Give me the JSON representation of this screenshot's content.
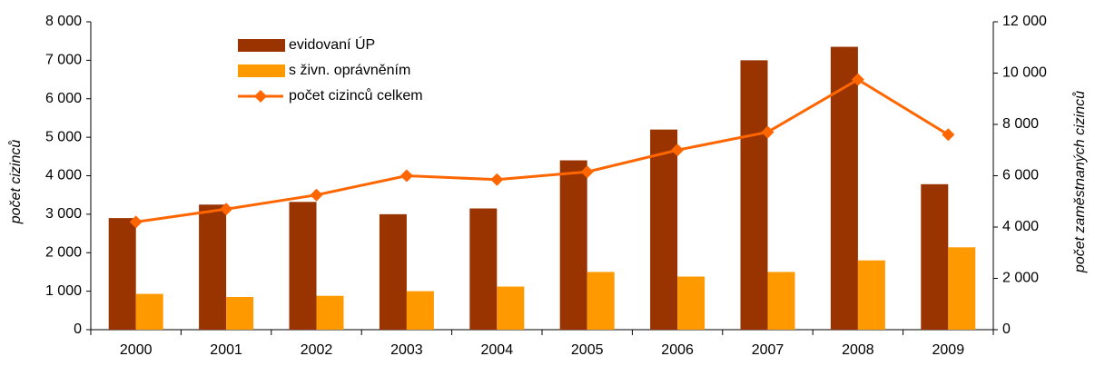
{
  "chart_data": {
    "type": "bar",
    "categories": [
      "2000",
      "2001",
      "2002",
      "2003",
      "2004",
      "2005",
      "2006",
      "2007",
      "2008",
      "2009"
    ],
    "series": [
      {
        "name": "evidovaní ÚP",
        "color": "#993300",
        "values": [
          2900,
          3250,
          3320,
          3000,
          3150,
          4400,
          5200,
          7000,
          7350,
          3780
        ]
      },
      {
        "name": "s živn. oprávněním",
        "color": "#ff9900",
        "values": [
          930,
          850,
          880,
          1000,
          1120,
          1500,
          1380,
          1500,
          1800,
          2140
        ]
      },
      {
        "name": "počet cizinců celkem",
        "color": "#ff6600",
        "type": "line",
        "axis": "y2",
        "values": [
          4200,
          4700,
          5250,
          6000,
          5850,
          6150,
          7000,
          7700,
          9750,
          7600
        ]
      }
    ],
    "y_label": "počet cizinců",
    "y2_label": "počet zaměstnaných cizinců",
    "ylim": [
      0,
      8000
    ],
    "yticks": [
      0,
      {
        "value": 1000,
        "label": "1 000"
      },
      {
        "value": 2000,
        "label": "2 000"
      },
      {
        "value": 3000,
        "label": "3 000"
      },
      {
        "value": 4000,
        "label": "4 000"
      },
      {
        "value": 5000,
        "label": "5 000"
      },
      {
        "value": 6000,
        "label": "6 000"
      },
      {
        "value": 7000,
        "label": "7 000"
      },
      {
        "value": 8000,
        "label": "8 000"
      }
    ],
    "y2lim": [
      0,
      12000
    ],
    "y2ticks": [
      0,
      {
        "value": 2000,
        "label": "2 000"
      },
      {
        "value": 4000,
        "label": "4 000"
      },
      {
        "value": 6000,
        "label": "6 000"
      },
      {
        "value": 8000,
        "label": "8 000"
      },
      {
        "value": 10000,
        "label": "10 000"
      },
      {
        "value": 12000,
        "label": "12 000"
      }
    ],
    "grid": false,
    "legend": "top-left"
  }
}
